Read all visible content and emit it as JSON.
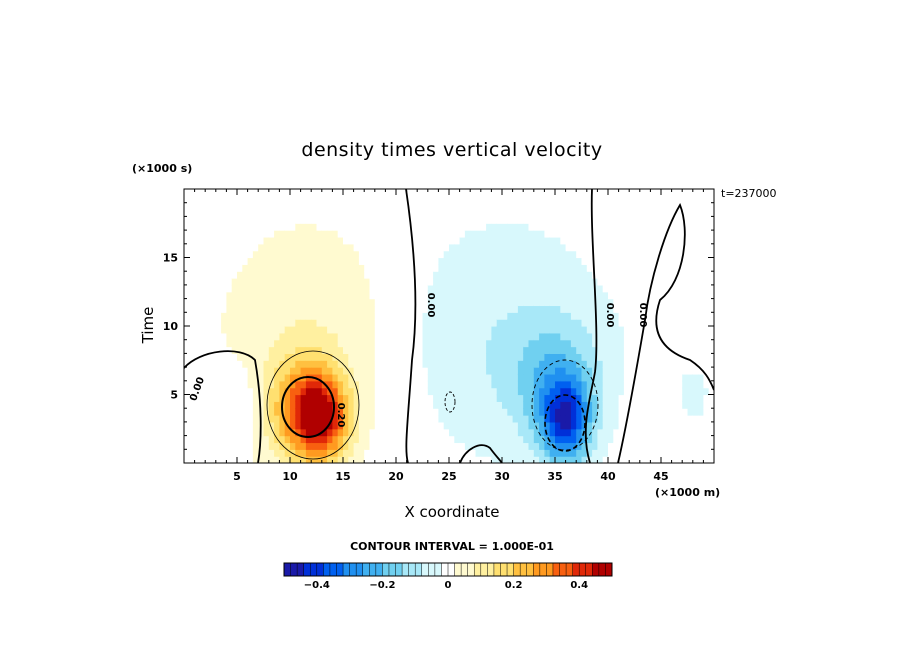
{
  "chart_data": {
    "type": "heatmap",
    "title": "density times vertical velocity",
    "xlabel": "X coordinate",
    "ylabel": "Time",
    "x_unit": "(×1000 m)",
    "y_unit": "(×1000 s)",
    "time_label": "t=237000",
    "contour_interval_text": "CONTOUR INTERVAL = 1.000E-01",
    "xlim": [
      0,
      50
    ],
    "ylim": [
      0,
      20
    ],
    "x_ticks": [
      5,
      10,
      15,
      20,
      25,
      30,
      35,
      40,
      45
    ],
    "y_ticks": [
      5,
      10,
      15
    ],
    "colorbar": {
      "range": [
        -0.5,
        0.5
      ],
      "ticks": [
        -0.4,
        -0.2,
        0,
        0.2,
        0.4
      ],
      "tick_labels": [
        "−0.4",
        "−0.2",
        "0",
        "0.2",
        "0.4"
      ]
    },
    "contour_labels": [
      "0.00",
      "0.00",
      "0.00",
      "0.00",
      "0.20"
    ],
    "features": [
      {
        "x": 11.5,
        "y": 3.8,
        "value": 0.35,
        "sx": 2.2,
        "sy": 2.6
      },
      {
        "x": 13.5,
        "y": 3.2,
        "value": 0.25,
        "sx": 1.6,
        "sy": 2.0
      },
      {
        "x": 12,
        "y": 9,
        "value": 0.08,
        "sx": 6,
        "sy": 6
      },
      {
        "x": 36,
        "y": 3,
        "value": -0.35,
        "sx": 1.6,
        "sy": 2.2
      },
      {
        "x": 35,
        "y": 6,
        "value": -0.15,
        "sx": 3,
        "sy": 3
      },
      {
        "x": 30,
        "y": 9,
        "value": -0.08,
        "sx": 7,
        "sy": 6
      },
      {
        "x": 5,
        "y": 4.5,
        "value": -0.05,
        "sx": 1.5,
        "sy": 2
      },
      {
        "x": 44,
        "y": 4.5,
        "value": 0.03,
        "sx": 1.5,
        "sy": 2
      },
      {
        "x": 48,
        "y": 5,
        "value": -0.04,
        "sx": 1.5,
        "sy": 2
      }
    ],
    "colors": {
      "palette": [
        "#1a1aa8",
        "#0030d8",
        "#0060f0",
        "#2090f0",
        "#40b0f0",
        "#70d0f0",
        "#a8e8f8",
        "#d8f8fc",
        "#ffffff",
        "#fffad0",
        "#fff0a0",
        "#ffe070",
        "#ffc040",
        "#ff9a20",
        "#f86010",
        "#e02808",
        "#b00000"
      ]
    }
  }
}
